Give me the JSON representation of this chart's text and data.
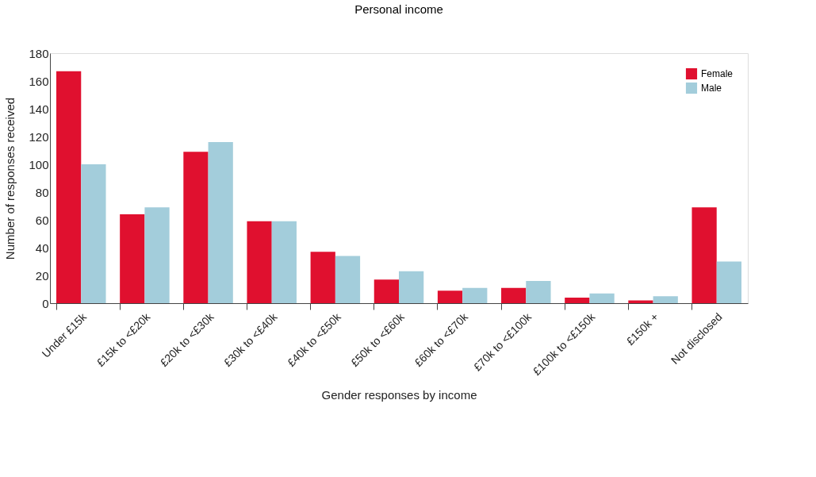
{
  "chart_data": {
    "type": "bar",
    "title": "Personal income",
    "xlabel": "Gender responses by income",
    "ylabel": "Number of responses received",
    "categories": [
      "Under £15k",
      "£15k to <£20k",
      "£20k to <£30k",
      "£30k to <£40k",
      "£40k to <£50k",
      "£50k to <£60k",
      "£60k to <£70k",
      "£70k to <£100k",
      "£100k to <£150k",
      "£150k +",
      "Not disclosed"
    ],
    "series": [
      {
        "name": "Female",
        "color": "#e0102f",
        "values": [
          167,
          64,
          109,
          59,
          37,
          17,
          9,
          11,
          4,
          2,
          69
        ]
      },
      {
        "name": "Male",
        "color": "#a3cddb",
        "values": [
          100,
          69,
          116,
          59,
          34,
          23,
          11,
          16,
          7,
          5,
          30
        ]
      }
    ],
    "ylim": [
      0,
      180
    ],
    "yticks": [
      0,
      20,
      40,
      60,
      80,
      100,
      120,
      140,
      160,
      180
    ],
    "grid": false,
    "legend": "top right"
  }
}
